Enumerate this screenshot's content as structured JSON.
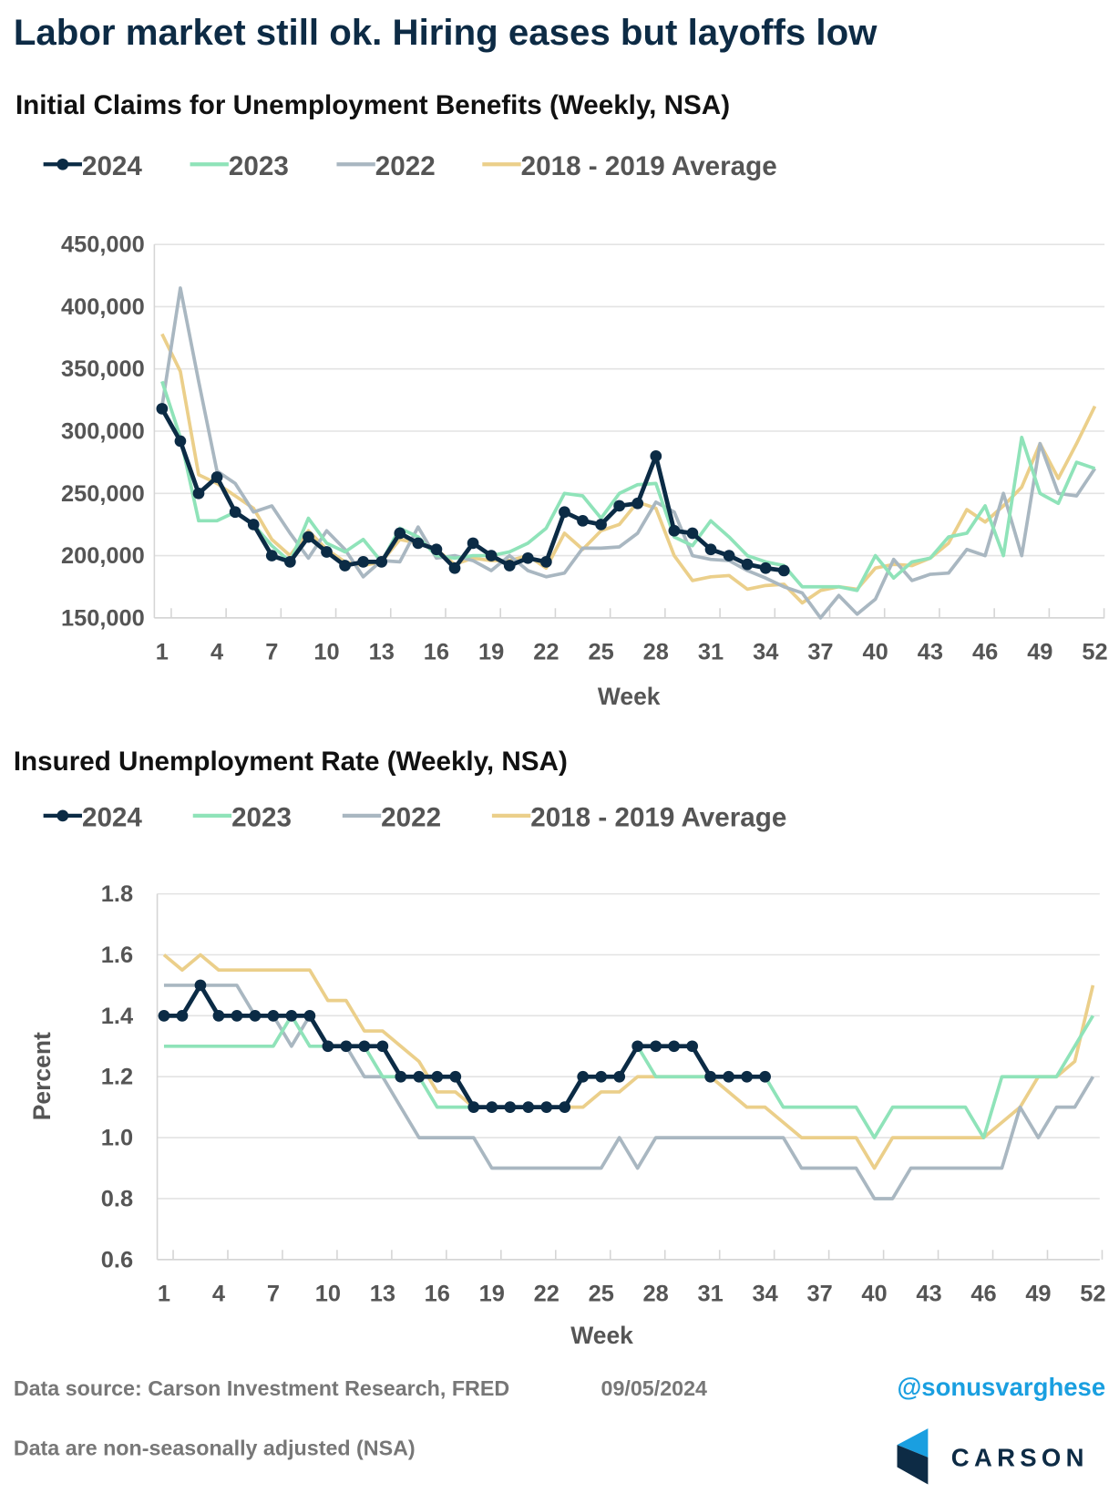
{
  "title": "Labor market still ok. Hiring eases but layoffs low",
  "colors": {
    "2024": "#0b2b45",
    "2023": "#8fe3b9",
    "2022": "#a9b7c1",
    "avg": "#ebcf8a",
    "grid": "#e3e3e3"
  },
  "chart_data": [
    {
      "type": "line",
      "title": "Initial Claims for Unemployment Benefits (Weekly, NSA)",
      "xlabel": "Week",
      "ylabel": "",
      "ylim": [
        150000,
        450000
      ],
      "yticks": [
        "150,000",
        "200,000",
        "250,000",
        "300,000",
        "350,000",
        "400,000",
        "450,000"
      ],
      "ytick_values": [
        150000,
        200000,
        250000,
        300000,
        350000,
        400000,
        450000
      ],
      "xticks": [
        "1",
        "4",
        "7",
        "10",
        "13",
        "16",
        "19",
        "22",
        "25",
        "28",
        "31",
        "34",
        "37",
        "40",
        "43",
        "46",
        "49",
        "52"
      ],
      "xlim": [
        1,
        52
      ],
      "grid": true,
      "legend": "top-left",
      "series": [
        {
          "name": "2024",
          "color_key": "2024",
          "markers": true,
          "values": [
            318000,
            292000,
            250000,
            263000,
            235000,
            225000,
            200000,
            195000,
            215000,
            203000,
            192000,
            195000,
            195000,
            218000,
            210000,
            205000,
            190000,
            210000,
            200000,
            192000,
            198000,
            195000,
            235000,
            228000,
            225000,
            240000,
            242000,
            280000,
            220000,
            218000,
            205000,
            200000,
            193000,
            190000,
            188000
          ]
        },
        {
          "name": "2023",
          "color_key": "2023",
          "markers": false,
          "values": [
            340000,
            295000,
            228000,
            228000,
            235000,
            225000,
            208000,
            195000,
            230000,
            210000,
            203000,
            213000,
            195000,
            222000,
            215000,
            200000,
            198000,
            200000,
            200000,
            203000,
            210000,
            222000,
            250000,
            248000,
            230000,
            250000,
            257000,
            258000,
            215000,
            208000,
            228000,
            215000,
            200000,
            195000,
            192000,
            175000,
            175000,
            175000,
            172000,
            200000,
            182000,
            195000,
            198000,
            215000,
            218000,
            240000,
            200000,
            295000,
            250000,
            242000,
            275000,
            270000
          ]
        },
        {
          "name": "2022",
          "color_key": "2022",
          "markers": false,
          "values": [
            320000,
            415000,
            340000,
            268000,
            258000,
            235000,
            240000,
            218000,
            198000,
            220000,
            205000,
            183000,
            196000,
            195000,
            223000,
            198000,
            200000,
            196000,
            188000,
            200000,
            188000,
            183000,
            186000,
            206000,
            206000,
            207000,
            218000,
            243000,
            235000,
            200000,
            197000,
            196000,
            188000,
            182000,
            175000,
            170000,
            150000,
            168000,
            153000,
            165000,
            197000,
            180000,
            185000,
            186000,
            205000,
            200000,
            250000,
            200000,
            290000,
            250000,
            248000,
            270000
          ]
        },
        {
          "name": "2018 - 2019 Average",
          "color_key": "avg",
          "markers": false,
          "values": [
            378000,
            348000,
            265000,
            258000,
            248000,
            238000,
            213000,
            200000,
            220000,
            205000,
            195000,
            192000,
            195000,
            213000,
            210000,
            205000,
            193000,
            198000,
            196000,
            196000,
            200000,
            190000,
            218000,
            205000,
            220000,
            225000,
            243000,
            238000,
            200000,
            180000,
            183000,
            184000,
            173000,
            176000,
            177000,
            162000,
            172000,
            175000,
            173000,
            190000,
            193000,
            192000,
            198000,
            210000,
            237000,
            227000,
            240000,
            255000,
            290000,
            262000,
            290000,
            320000
          ]
        }
      ]
    },
    {
      "type": "line",
      "title": "Insured Unemployment Rate (Weekly, NSA)",
      "xlabel": "Week",
      "ylabel": "Percent",
      "ylim": [
        0.6,
        1.8
      ],
      "yticks": [
        "0.6",
        "0.8",
        "1.0",
        "1.2",
        "1.4",
        "1.6",
        "1.8"
      ],
      "ytick_values": [
        0.6,
        0.8,
        1.0,
        1.2,
        1.4,
        1.6,
        1.8
      ],
      "xticks": [
        "1",
        "4",
        "7",
        "10",
        "13",
        "16",
        "19",
        "22",
        "25",
        "28",
        "31",
        "34",
        "37",
        "40",
        "43",
        "46",
        "49",
        "52"
      ],
      "xlim": [
        1,
        52
      ],
      "grid": true,
      "legend": "top-left",
      "series": [
        {
          "name": "2024",
          "color_key": "2024",
          "markers": true,
          "values": [
            1.4,
            1.4,
            1.5,
            1.4,
            1.4,
            1.4,
            1.4,
            1.4,
            1.4,
            1.3,
            1.3,
            1.3,
            1.3,
            1.2,
            1.2,
            1.2,
            1.2,
            1.1,
            1.1,
            1.1,
            1.1,
            1.1,
            1.1,
            1.2,
            1.2,
            1.2,
            1.3,
            1.3,
            1.3,
            1.3,
            1.2,
            1.2,
            1.2,
            1.2
          ]
        },
        {
          "name": "2023",
          "color_key": "2023",
          "markers": false,
          "values": [
            1.3,
            1.3,
            1.3,
            1.3,
            1.3,
            1.3,
            1.3,
            1.4,
            1.3,
            1.3,
            1.3,
            1.3,
            1.2,
            1.2,
            1.2,
            1.1,
            1.1,
            1.1,
            1.1,
            1.1,
            1.1,
            1.1,
            1.1,
            1.2,
            1.2,
            1.2,
            1.3,
            1.2,
            1.2,
            1.2,
            1.2,
            1.2,
            1.2,
            1.2,
            1.1,
            1.1,
            1.1,
            1.1,
            1.1,
            1.0,
            1.1,
            1.1,
            1.1,
            1.1,
            1.1,
            1.0,
            1.2,
            1.2,
            1.2,
            1.2,
            1.3,
            1.4
          ]
        },
        {
          "name": "2022",
          "color_key": "2022",
          "markers": false,
          "values": [
            1.5,
            1.5,
            1.5,
            1.5,
            1.5,
            1.4,
            1.4,
            1.3,
            1.4,
            1.3,
            1.3,
            1.2,
            1.2,
            1.1,
            1.0,
            1.0,
            1.0,
            1.0,
            0.9,
            0.9,
            0.9,
            0.9,
            0.9,
            0.9,
            0.9,
            1.0,
            0.9,
            1.0,
            1.0,
            1.0,
            1.0,
            1.0,
            1.0,
            1.0,
            1.0,
            0.9,
            0.9,
            0.9,
            0.9,
            0.8,
            0.8,
            0.9,
            0.9,
            0.9,
            0.9,
            0.9,
            0.9,
            1.1,
            1.0,
            1.1,
            1.1,
            1.2
          ]
        },
        {
          "name": "2018 - 2019 Average",
          "color_key": "avg",
          "markers": false,
          "values": [
            1.6,
            1.55,
            1.6,
            1.55,
            1.55,
            1.55,
            1.55,
            1.55,
            1.55,
            1.45,
            1.45,
            1.35,
            1.35,
            1.3,
            1.25,
            1.15,
            1.15,
            1.1,
            1.1,
            1.1,
            1.1,
            1.1,
            1.1,
            1.1,
            1.15,
            1.15,
            1.2,
            1.2,
            1.2,
            1.2,
            1.2,
            1.15,
            1.1,
            1.1,
            1.05,
            1.0,
            1.0,
            1.0,
            1.0,
            0.9,
            1.0,
            1.0,
            1.0,
            1.0,
            1.0,
            1.0,
            1.05,
            1.1,
            1.2,
            1.2,
            1.25,
            1.5
          ]
        }
      ]
    }
  ],
  "footer": {
    "source": "Data source: Carson Investment Research, FRED",
    "date": "09/05/2024",
    "note": "Data are non-seasonally adjusted (NSA)",
    "handle": "@sonusvarghese",
    "logo_text": "CARSON"
  }
}
